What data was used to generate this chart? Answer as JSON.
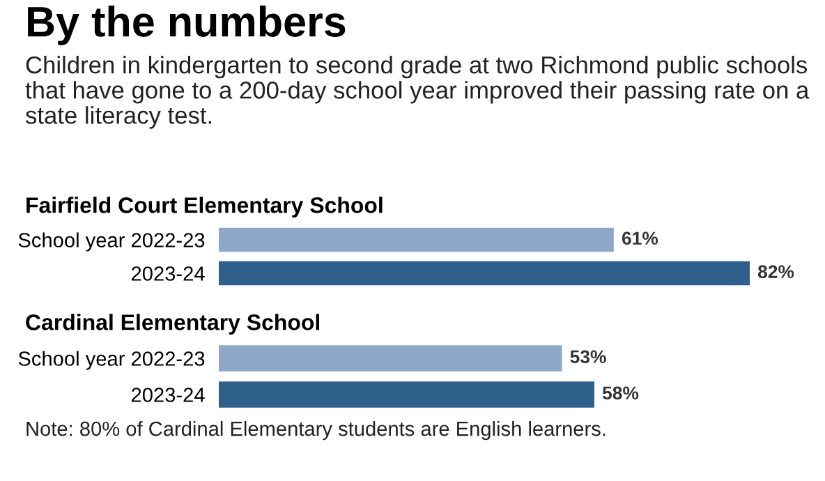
{
  "chart_data": [
    {
      "type": "other",
      "title": "By the numbers",
      "subtitle": "Children in kindergarten to second grade at two Richmond public schools that have gone to a 200-day school year improved their passing rate on a state literacy test."
    },
    {
      "type": "bar",
      "orientation": "horizontal",
      "title": "Fairfield Court Elementary School",
      "categories": [
        "School year 2022-23",
        "2023-24"
      ],
      "values": [
        61,
        82
      ],
      "colors": [
        "#8fa8c9",
        "#2f5f8b"
      ],
      "value_labels": [
        "61%",
        "82%"
      ],
      "grid": false,
      "legend": false,
      "tick_labels": "y"
    },
    {
      "type": "bar",
      "orientation": "horizontal",
      "title": "Cardinal Elementary School",
      "categories": [
        "School year 2022-23",
        "2023-24"
      ],
      "values": [
        53,
        58
      ],
      "colors": [
        "#8fa8c9",
        "#2f5f8b"
      ],
      "value_labels": [
        "53%",
        "58%"
      ],
      "grid": false,
      "legend": false,
      "tick_labels": "y",
      "annotations": [
        "Note: 80% of Cardinal Elementary students are English learners."
      ]
    }
  ]
}
